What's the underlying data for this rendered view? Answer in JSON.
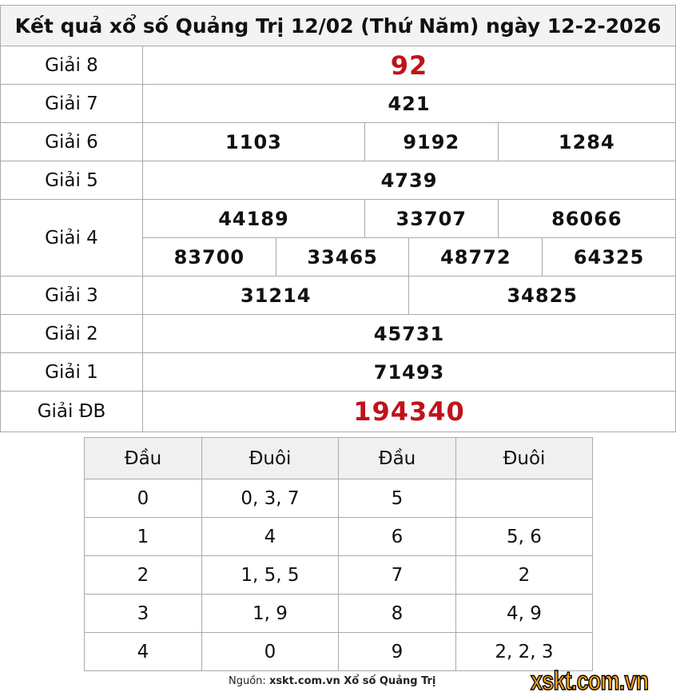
{
  "title": "Kết quả xổ số Quảng Trị 12/02 (Thứ Năm) ngày 12-2-2026",
  "prizes": {
    "g8": {
      "label": "Giải 8",
      "numbers": [
        "92"
      ]
    },
    "g7": {
      "label": "Giải 7",
      "numbers": [
        "421"
      ]
    },
    "g6": {
      "label": "Giải 6",
      "numbers": [
        "1103",
        "9192",
        "1284"
      ]
    },
    "g5": {
      "label": "Giải 5",
      "numbers": [
        "4739"
      ]
    },
    "g4": {
      "label": "Giải 4",
      "numbers": [
        "44189",
        "33707",
        "86066",
        "83700",
        "33465",
        "48772",
        "64325"
      ]
    },
    "g3": {
      "label": "Giải 3",
      "numbers": [
        "31214",
        "34825"
      ]
    },
    "g2": {
      "label": "Giải 2",
      "numbers": [
        "45731"
      ]
    },
    "g1": {
      "label": "Giải 1",
      "numbers": [
        "71493"
      ]
    },
    "db": {
      "label": "Giải ĐB",
      "numbers": [
        "194340"
      ]
    }
  },
  "loto": {
    "headers": [
      "Đầu",
      "Đuôi",
      "Đầu",
      "Đuôi"
    ],
    "rows": [
      [
        "0",
        "0, 3, 7",
        "5",
        ""
      ],
      [
        "1",
        "4",
        "6",
        "5, 6"
      ],
      [
        "2",
        "1, 5, 5",
        "7",
        "2"
      ],
      [
        "3",
        "1, 9",
        "8",
        "4, 9"
      ],
      [
        "4",
        "0",
        "9",
        "2, 2, 3"
      ]
    ]
  },
  "footer": {
    "prefix": "Nguồn:",
    "source": "xskt.com.vn Xổ số Quảng Trị"
  },
  "logo": "xskt.com.vn",
  "colors": {
    "special": "#c0121a",
    "logo": "#f7a21b"
  }
}
